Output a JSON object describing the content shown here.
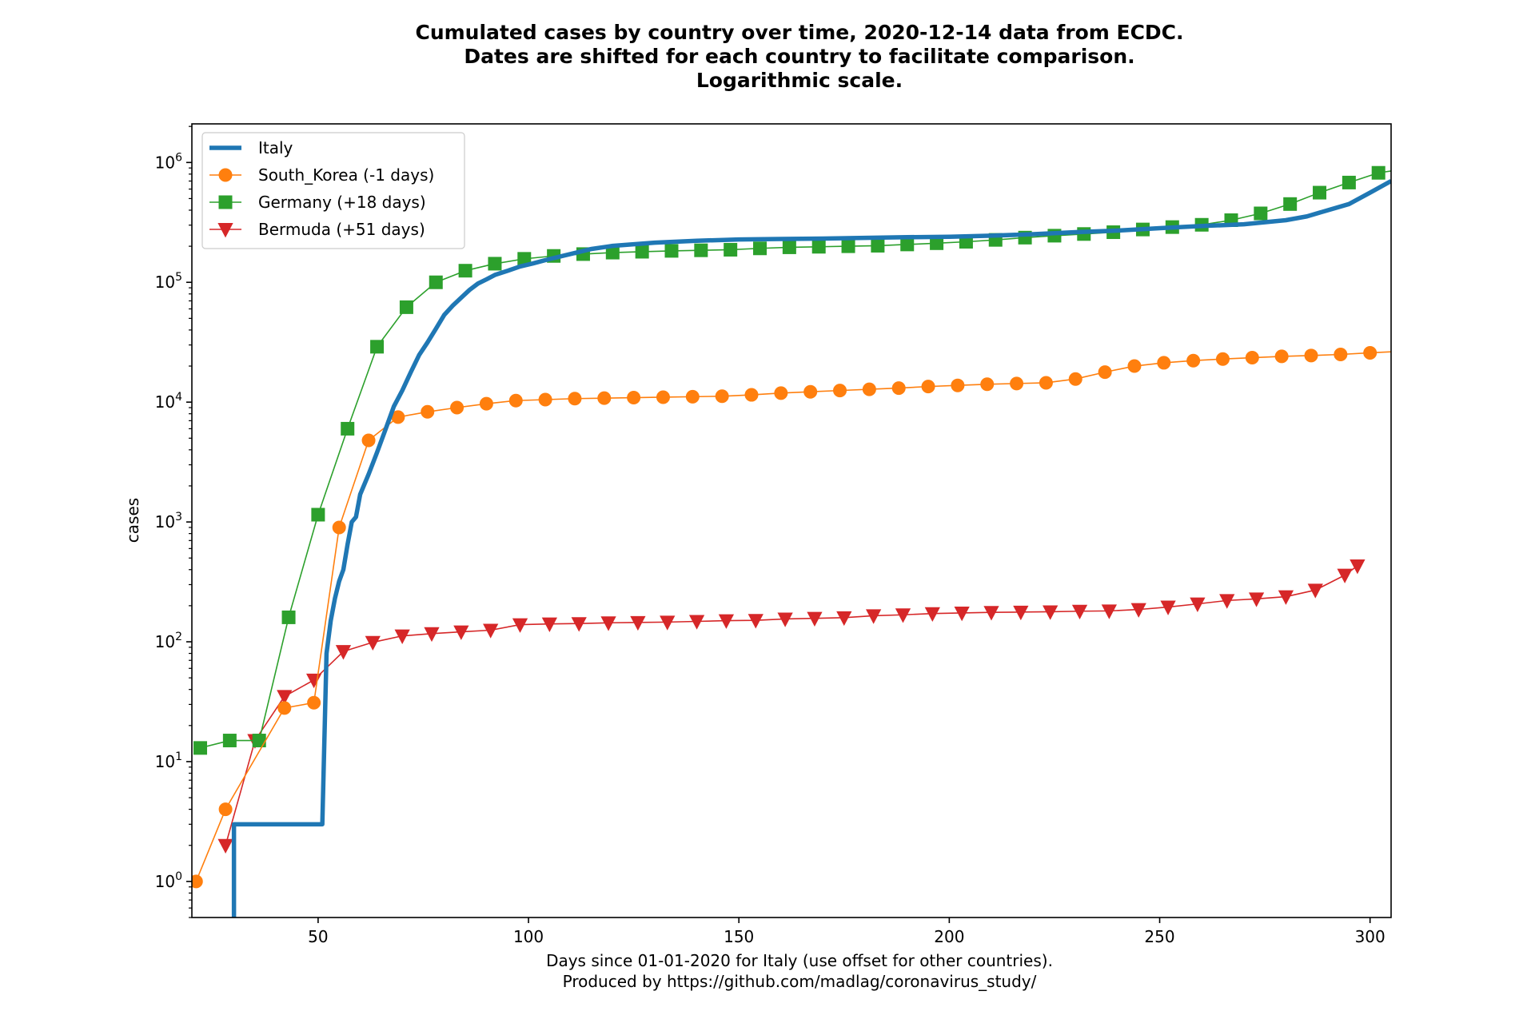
{
  "chart_data": {
    "type": "line",
    "title_lines": [
      "Cumulated cases by country over time, 2020-12-14 data from ECDC.",
      "Dates are shifted for each country to facilitate comparison.",
      "Logarithmic scale."
    ],
    "xlabel_lines": [
      "Days since 01-01-2020 for Italy (use offset for other countries).",
      "Produced by https://github.com/madlag/coronavirus_study/"
    ],
    "ylabel": "cases",
    "xlim": [
      20,
      305
    ],
    "ylim": [
      0.5,
      2100000
    ],
    "yscale": "log",
    "xticks": [
      "50",
      "100",
      "150",
      "200",
      "250",
      "300"
    ],
    "yticks": [
      {
        "base": "10",
        "exp": "0"
      },
      {
        "base": "10",
        "exp": "1"
      },
      {
        "base": "10",
        "exp": "2"
      },
      {
        "base": "10",
        "exp": "3"
      },
      {
        "base": "10",
        "exp": "4"
      },
      {
        "base": "10",
        "exp": "5"
      },
      {
        "base": "10",
        "exp": "6"
      }
    ],
    "grid": false,
    "legend_position": "upper-left",
    "series": [
      {
        "name": "Italy",
        "color": "#1f77b4",
        "marker": "none",
        "x": [
          30,
          30,
          31,
          51,
          52,
          53,
          54,
          55,
          56,
          57,
          58,
          59,
          60,
          62,
          64,
          66,
          68,
          70,
          72,
          74,
          76,
          78,
          80,
          82,
          84,
          86,
          88,
          90,
          92,
          95,
          98,
          101,
          105,
          110,
          115,
          120,
          130,
          140,
          150,
          160,
          170,
          180,
          190,
          200,
          210,
          220,
          230,
          240,
          250,
          260,
          270,
          280,
          285,
          290,
          295,
          300,
          305
        ],
        "y": [
          0.5,
          3,
          3,
          3,
          80,
          150,
          230,
          320,
          400,
          650,
          1000,
          1100,
          1700,
          2500,
          3800,
          5900,
          9200,
          12500,
          17700,
          24700,
          31500,
          41000,
          53600,
          63900,
          74400,
          86500,
          97700,
          105800,
          115200,
          124600,
          135600,
          143600,
          156400,
          172400,
          189900,
          201500,
          214400,
          222100,
          228000,
          230000,
          232000,
          235000,
          238000,
          240000,
          245000,
          252000,
          262000,
          270000,
          283000,
          295000,
          305000,
          330000,
          355000,
          400000,
          450000,
          560000,
          700000
        ]
      },
      {
        "name": "South_Korea (-1 days)",
        "color": "#ff7f0e",
        "marker": "circle",
        "x": [
          21,
          28,
          42,
          49,
          55,
          62,
          69,
          76,
          83,
          90,
          97,
          104,
          111,
          118,
          125,
          132,
          139,
          146,
          153,
          160,
          167,
          174,
          181,
          188,
          195,
          202,
          209,
          216,
          223,
          230,
          237,
          244,
          251,
          258,
          265,
          272,
          279,
          286,
          293,
          300,
          305
        ],
        "y": [
          1,
          4,
          28,
          31,
          900,
          4800,
          7500,
          8300,
          9000,
          9700,
          10300,
          10500,
          10700,
          10800,
          10900,
          11000,
          11100,
          11200,
          11500,
          11900,
          12200,
          12500,
          12800,
          13100,
          13500,
          13800,
          14100,
          14300,
          14500,
          15600,
          17800,
          20000,
          21300,
          22200,
          22900,
          23500,
          24100,
          24500,
          25000,
          25800,
          26300
        ]
      },
      {
        "name": "Germany (+18 days)",
        "color": "#2ca02c",
        "marker": "square",
        "x": [
          22,
          29,
          36,
          43,
          50,
          57,
          64,
          71,
          78,
          85,
          92,
          99,
          106,
          113,
          120,
          127,
          134,
          141,
          148,
          155,
          162,
          169,
          176,
          183,
          190,
          197,
          204,
          211,
          218,
          225,
          232,
          239,
          246,
          253,
          260,
          267,
          274,
          281,
          288,
          295,
          302,
          305
        ],
        "y": [
          13,
          15,
          15,
          160,
          1150,
          6000,
          29000,
          62000,
          100000,
          125000,
          143000,
          157000,
          166000,
          172000,
          177000,
          180000,
          183000,
          185000,
          187000,
          192000,
          196000,
          198000,
          200000,
          202000,
          207000,
          212000,
          218000,
          226000,
          236000,
          245000,
          253000,
          262000,
          276000,
          289000,
          302000,
          330000,
          376000,
          450000,
          560000,
          680000,
          820000,
          850000
        ]
      },
      {
        "name": "Bermuda (+51 days)",
        "color": "#d62728",
        "marker": "triangle-down",
        "x": [
          28,
          35,
          42,
          49,
          56,
          63,
          70,
          77,
          84,
          91,
          98,
          105,
          112,
          119,
          126,
          133,
          140,
          147,
          154,
          161,
          168,
          175,
          182,
          189,
          196,
          203,
          210,
          217,
          224,
          231,
          238,
          245,
          252,
          259,
          266,
          273,
          280,
          287,
          294,
          297
        ],
        "y": [
          2,
          15,
          35,
          48,
          83,
          99,
          112,
          117,
          121,
          125,
          139,
          141,
          142,
          144,
          145,
          146,
          148,
          150,
          151,
          155,
          157,
          159,
          165,
          168,
          172,
          174,
          176,
          177,
          178,
          180,
          181,
          186,
          195,
          207,
          221,
          228,
          238,
          270,
          360,
          430
        ]
      }
    ]
  }
}
